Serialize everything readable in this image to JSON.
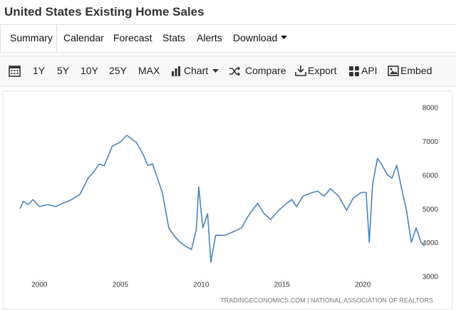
{
  "header": {
    "title": "United States Existing Home Sales"
  },
  "tabs": [
    "Summary",
    "Calendar",
    "Forecast",
    "Stats",
    "Alerts",
    "Download"
  ],
  "toolbar": [
    "1Y",
    "5Y",
    "10Y",
    "25Y",
    "MAX",
    "Chart",
    "Compare",
    "Export",
    "API",
    "Embed"
  ],
  "chart_data": {
    "type": "line",
    "color": "#4a84bb",
    "source": "TRADINGECONOMICS.COM | NATIONAL ASSOCIATION OF REALTORS",
    "x": [
      1998.8,
      1999.0,
      1999.3,
      1999.6,
      2000.0,
      2000.5,
      2001.0,
      2001.5,
      2002.0,
      2002.5,
      2003.0,
      2003.4,
      2003.7,
      2004.0,
      2004.5,
      2005.0,
      2005.4,
      2005.7,
      2006.0,
      2006.4,
      2006.7,
      2007.0,
      2007.3,
      2007.6,
      2008.0,
      2008.3,
      2008.6,
      2009.0,
      2009.4,
      2009.7,
      2009.85,
      2010.1,
      2010.4,
      2010.6,
      2010.9,
      2011.5,
      2012.0,
      2012.5,
      2013.0,
      2013.5,
      2013.9,
      2014.3,
      2014.8,
      2015.3,
      2015.6,
      2015.9,
      2016.3,
      2016.9,
      2017.2,
      2017.6,
      2018.0,
      2018.5,
      2019.0,
      2019.4,
      2019.9,
      2020.2,
      2020.4,
      2020.6,
      2020.9,
      2021.2,
      2021.5,
      2021.8,
      2022.1,
      2022.4,
      2022.7,
      2023.0,
      2023.3,
      2023.6,
      2023.8
    ],
    "values": [
      5030,
      5250,
      5150,
      5300,
      5090,
      5150,
      5090,
      5200,
      5300,
      5450,
      5930,
      6150,
      6350,
      6300,
      6880,
      7000,
      7200,
      7100,
      6990,
      6650,
      6310,
      6350,
      5930,
      5510,
      4460,
      4250,
      4080,
      3930,
      3820,
      4400,
      5680,
      4460,
      4880,
      3440,
      4240,
      4240,
      4350,
      4460,
      4880,
      5190,
      4880,
      4710,
      4980,
      5190,
      5300,
      5090,
      5400,
      5510,
      5550,
      5400,
      5620,
      5400,
      4980,
      5340,
      5510,
      5510,
      4030,
      5720,
      6520,
      6310,
      6040,
      5930,
      6310,
      5620,
      4980,
      4030,
      4460,
      4030,
      3930
    ],
    "xlim": [
      1998,
      2024
    ],
    "ylim": [
      3000,
      8000
    ],
    "xticks": [
      2000,
      2005,
      2010,
      2015,
      2020
    ],
    "yticks": [
      3000,
      4000,
      5000,
      6000,
      7000,
      8000
    ],
    "grid": false
  }
}
